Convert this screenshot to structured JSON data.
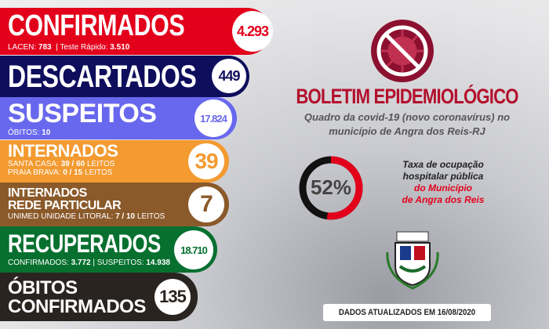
{
  "cards": {
    "confirmados": {
      "title": "CONFIRMADOS",
      "value": "4.293",
      "lacen_label": "LACEN:",
      "lacen": "783",
      "teste_label": "Teste Rápido:",
      "teste": "3.510",
      "color": "#e3001b"
    },
    "descartados": {
      "title": "DESCARTADOS",
      "value": "449",
      "color": "#0e0e5c"
    },
    "suspeitos": {
      "title": "SUSPEITOS",
      "value": "17.824",
      "obitos_label": "ÓBITOS:",
      "obitos": "10",
      "color": "#6868ee"
    },
    "internados": {
      "title": "INTERNADOS",
      "value": "39",
      "santa_label": "SANTA CASA:",
      "santa": "39 / 60",
      "praia_label": "PRAIA BRAVA:",
      "praia": "0 / 15",
      "leitos": "LEITOS",
      "color": "#f39a30"
    },
    "particular": {
      "title1": "INTERNADOS",
      "title2": "REDE PARTICULAR",
      "value": "7",
      "unimed_label": "UNIMED UNIDADE LITORAL:",
      "unimed": "7 / 10",
      "leitos": "LEITOS",
      "color": "#8b5a2b"
    },
    "recuperados": {
      "title": "RECUPERADOS",
      "value": "18.710",
      "conf_label": "CONFIRMADOS:",
      "conf": "3.772",
      "susp_label": "SUSPEITOS:",
      "susp": "14.938",
      "color": "#07702f"
    },
    "obitos": {
      "title1": "ÓBITOS",
      "title2": "CONFIRMADOS",
      "value": "135",
      "color": "#2a2421"
    }
  },
  "header": {
    "title": "BOLETIM EPIDEMIOLÓGICO",
    "subtitle1": "Quadro da covid-19 (novo coronavírus) no",
    "subtitle2": "município de Angra dos Reis-RJ"
  },
  "occupancy": {
    "percent": 52,
    "label": "52%",
    "text1": "Taxa de ocupação",
    "text2": "hospitalar pública",
    "text3": "do Município",
    "text4": "de Angra dos Reis"
  },
  "footer": {
    "updated": "DADOS ATUALIZADOS EM 16/08/2020"
  }
}
